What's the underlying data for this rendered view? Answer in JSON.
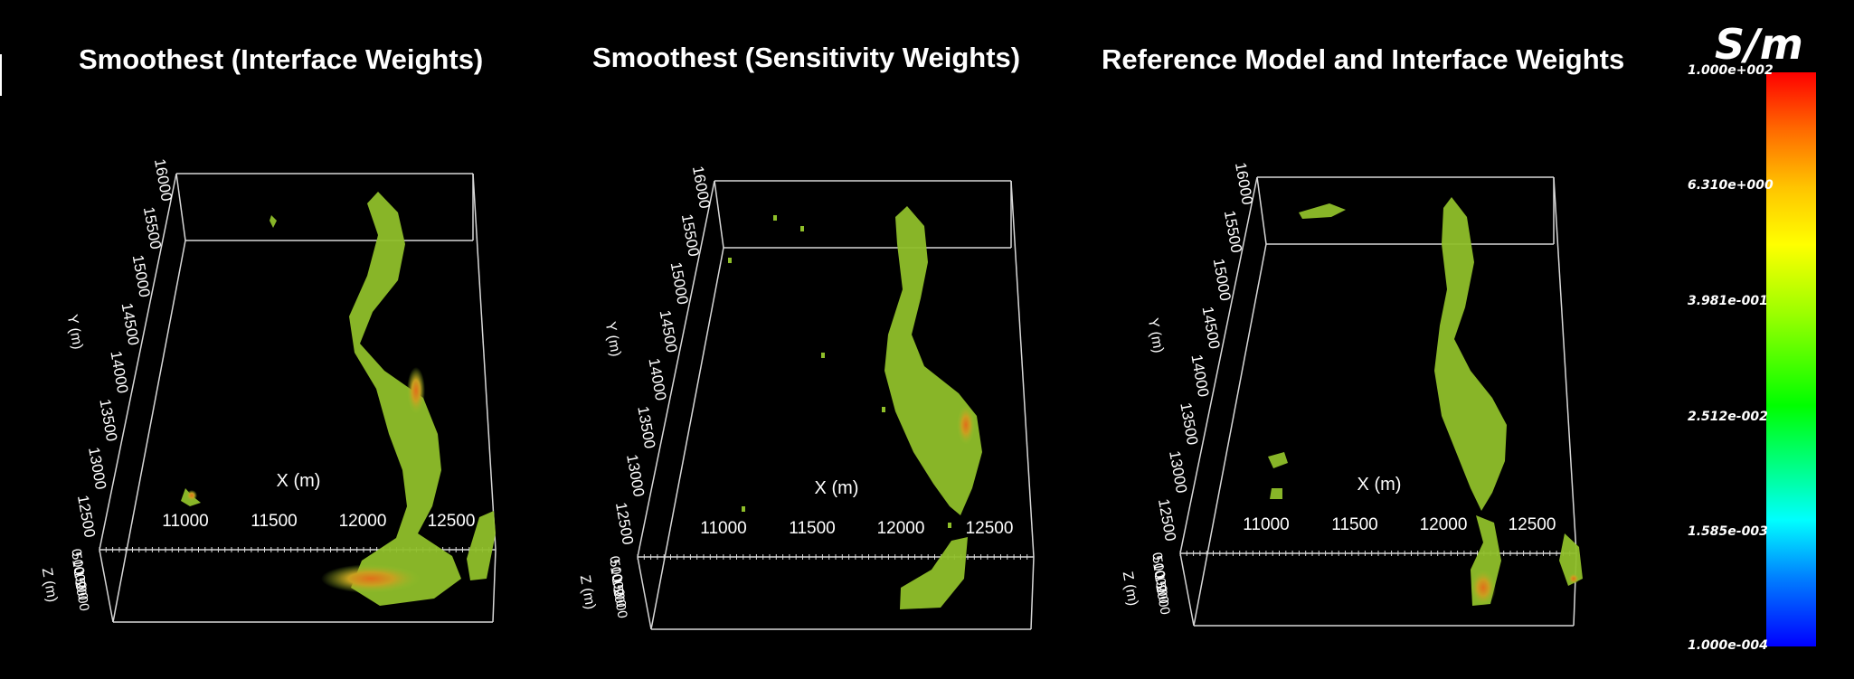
{
  "panels": [
    {
      "title": "Smoothest (Interface Weights)",
      "axes": {
        "x_label": "X (m)",
        "y_label": "Y (m)",
        "z_label": "Z (m)",
        "x_ticks": [
          "11000",
          "11500",
          "12000",
          "12500"
        ],
        "y_ticks": [
          "12500",
          "13000",
          "13500",
          "14000",
          "14500",
          "15000",
          "15500",
          "16000"
        ],
        "z_ticks": [
          "0",
          "500",
          "1000",
          "1500",
          "2000"
        ]
      }
    },
    {
      "title": "Smoothest (Sensitivity Weights)",
      "axes": {
        "x_label": "X (m)",
        "y_label": "Y (m)",
        "z_label": "Z (m)",
        "x_ticks": [
          "11000",
          "11500",
          "12000",
          "12500"
        ],
        "y_ticks": [
          "12500",
          "13000",
          "13500",
          "14000",
          "14500",
          "15000",
          "15500",
          "16000"
        ],
        "z_ticks": [
          "0",
          "500",
          "1000",
          "1500",
          "2000"
        ]
      }
    },
    {
      "title": "Reference Model and Interface Weights",
      "axes": {
        "x_label": "X (m)",
        "y_label": "Y (m)",
        "z_label": "Z (m)",
        "x_ticks": [
          "11000",
          "11500",
          "12000",
          "12500"
        ],
        "y_ticks": [
          "12500",
          "13000",
          "13500",
          "14000",
          "14500",
          "15000",
          "15500",
          "16000"
        ],
        "z_ticks": [
          "0",
          "500",
          "1000",
          "1500",
          "2000"
        ]
      }
    }
  ],
  "colorbar": {
    "unit": "S/m",
    "ticks": [
      "1.000e+002",
      "6.310e+000",
      "3.981e-001",
      "2.512e-002",
      "1.585e-003",
      "1.000e-004"
    ]
  },
  "colors": {
    "background": "#000000",
    "body_fill": "#8fbf2a",
    "body_core": "#e0701a",
    "frame": "#d8d8d8"
  }
}
